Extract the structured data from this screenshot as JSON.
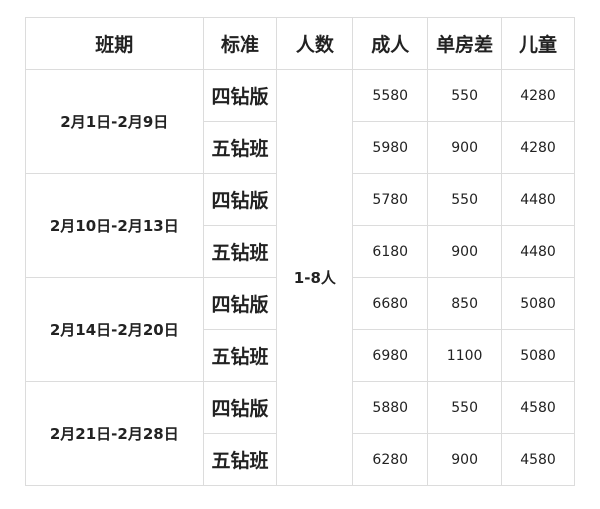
{
  "headers": [
    "班期",
    "标准",
    "人数",
    "成人",
    "单房差",
    "儿童"
  ],
  "people": "1-8人",
  "groups": [
    {
      "period": "2月1日-2月9日",
      "rows": [
        {
          "std": "四钻版",
          "adult": "5580",
          "single": "550",
          "child": "4280"
        },
        {
          "std": "五钻班",
          "adult": "5980",
          "single": "900",
          "child": "4280"
        }
      ]
    },
    {
      "period": "2月10日-2月13日",
      "rows": [
        {
          "std": "四钻版",
          "adult": "5780",
          "single": "550",
          "child": "4480"
        },
        {
          "std": "五钻班",
          "adult": "6180",
          "single": "900",
          "child": "4480"
        }
      ]
    },
    {
      "period": "2月14日-2月20日",
      "rows": [
        {
          "std": "四钻版",
          "adult": "6680",
          "single": "850",
          "child": "5080"
        },
        {
          "std": "五钻班",
          "adult": "6980",
          "single": "1100",
          "child": "5080"
        }
      ]
    },
    {
      "period": "2月21日-2月28日",
      "rows": [
        {
          "std": "四钻版",
          "adult": "5880",
          "single": "550",
          "child": "4580"
        },
        {
          "std": "五钻班",
          "adult": "6280",
          "single": "900",
          "child": "4580"
        }
      ]
    }
  ]
}
